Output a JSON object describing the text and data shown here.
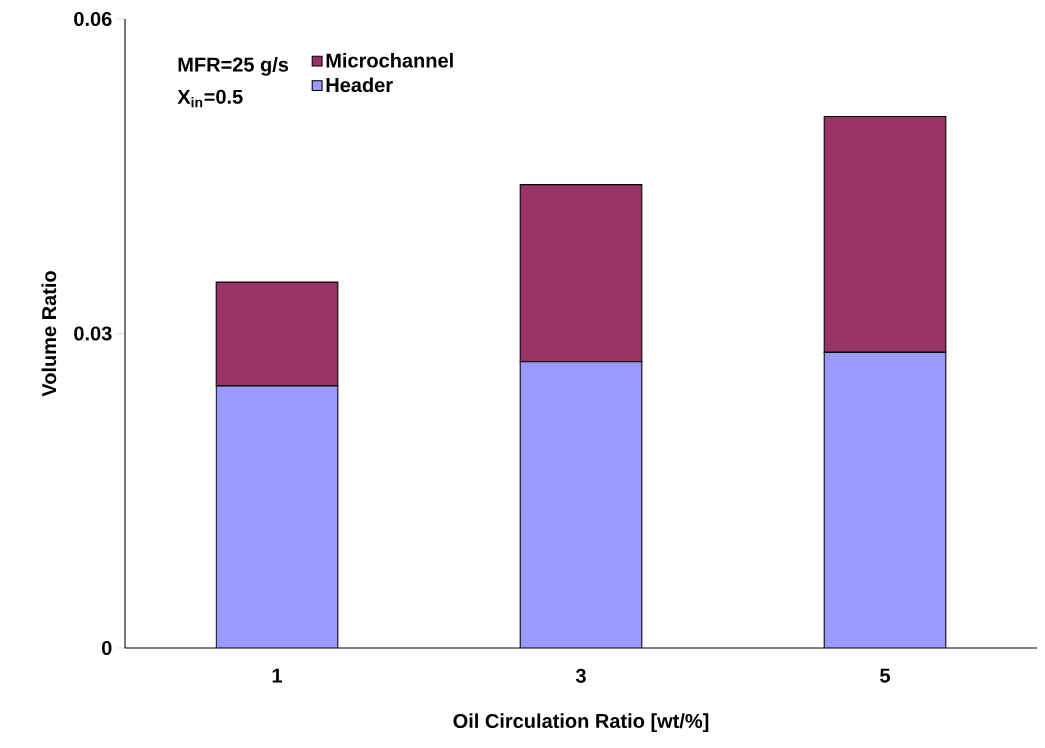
{
  "chart_data": {
    "type": "bar",
    "stacked": true,
    "xlabel": "Oil Circulation Ratio [wt/%]",
    "ylabel": "Volume Ratio",
    "categories": [
      "1",
      "3",
      "5"
    ],
    "series": [
      {
        "name": "Header",
        "color": "#9999ff",
        "values": [
          0.025,
          0.0273,
          0.0282
        ]
      },
      {
        "name": "Microchannel",
        "color": "#993366",
        "values": [
          0.0099,
          0.0169,
          0.0225
        ]
      }
    ],
    "ylim": [
      0,
      0.06
    ],
    "yticks": [
      0,
      0.03,
      0.06
    ],
    "grid": false,
    "legend": "top left",
    "annotations": [
      "MFR=25 g/s",
      "X$_{in}$=0.5"
    ]
  }
}
